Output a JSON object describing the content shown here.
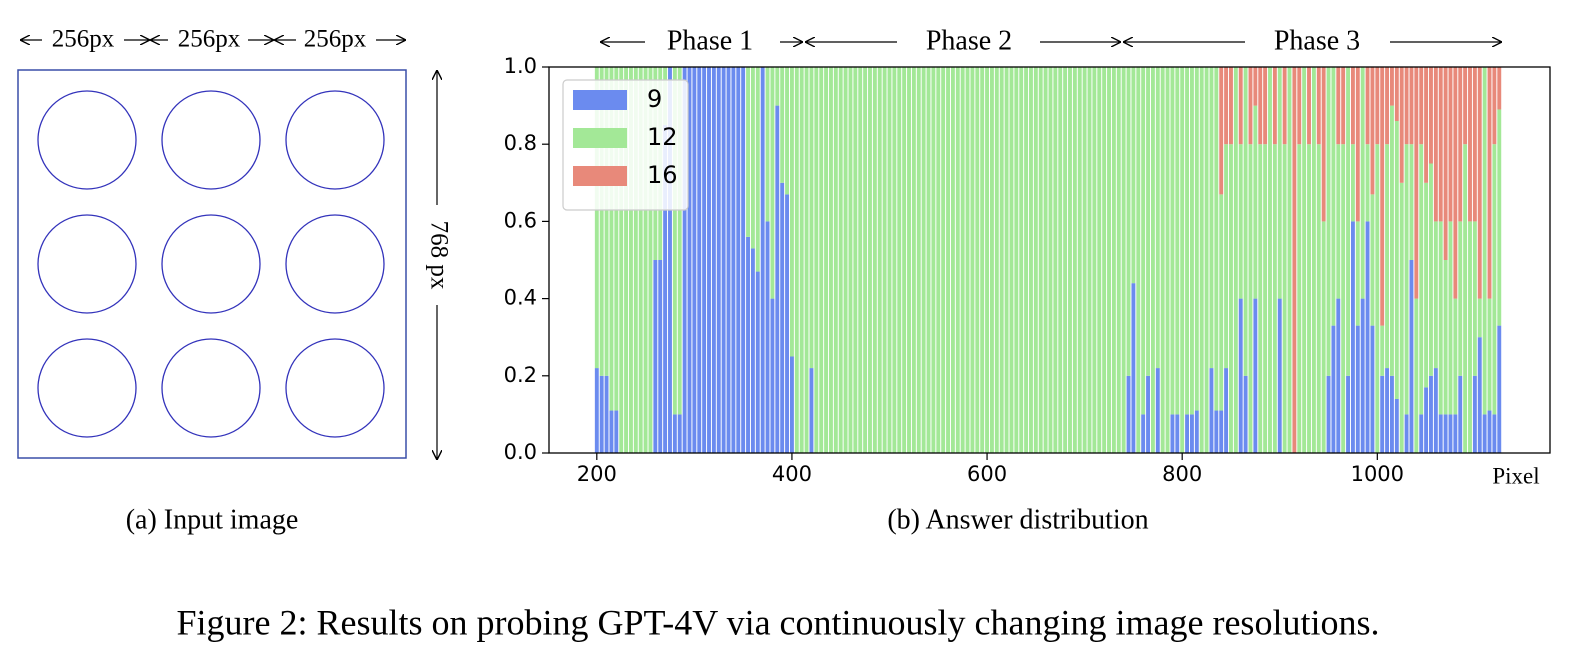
{
  "chart_data": {
    "type": "stacked_bar",
    "phases": [
      "Phase 1",
      "Phase 2",
      "Phase 3"
    ],
    "xlabel": "Pixel",
    "caption": "(b) Answer distribution",
    "xlim": [
      151,
      1177
    ],
    "xticks": [
      200,
      400,
      600,
      800,
      1000
    ],
    "ylim": [
      0,
      1
    ],
    "yticks": [
      {
        "value": 0,
        "label": "0.0"
      },
      0.2,
      0.4,
      0.6,
      0.8,
      {
        "value": 1,
        "label": "1.0"
      }
    ],
    "legend": "upper left",
    "x": [
      200,
      205,
      210,
      215,
      220,
      225,
      230,
      235,
      240,
      245,
      250,
      255,
      260,
      265,
      270,
      275,
      280,
      285,
      290,
      295,
      300,
      305,
      310,
      315,
      320,
      325,
      330,
      335,
      340,
      345,
      350,
      355,
      360,
      365,
      370,
      375,
      380,
      385,
      390,
      395,
      400,
      405,
      410,
      415,
      420,
      425,
      430,
      435,
      440,
      445,
      450,
      455,
      460,
      465,
      470,
      475,
      480,
      485,
      490,
      495,
      500,
      505,
      510,
      515,
      520,
      525,
      530,
      535,
      540,
      545,
      550,
      555,
      560,
      565,
      570,
      575,
      580,
      585,
      590,
      595,
      600,
      605,
      610,
      615,
      620,
      625,
      630,
      635,
      640,
      645,
      650,
      655,
      660,
      665,
      670,
      675,
      680,
      685,
      690,
      695,
      700,
      705,
      710,
      715,
      720,
      725,
      730,
      735,
      740,
      745,
      750,
      755,
      760,
      765,
      770,
      775,
      780,
      785,
      790,
      795,
      800,
      805,
      810,
      815,
      820,
      825,
      830,
      835,
      840,
      845,
      850,
      855,
      860,
      865,
      870,
      875,
      880,
      885,
      890,
      895,
      900,
      905,
      910,
      915,
      920,
      925,
      930,
      935,
      940,
      945,
      950,
      955,
      960,
      965,
      970,
      975,
      980,
      985,
      990,
      995,
      1000,
      1005,
      1010,
      1015,
      1020,
      1025,
      1030,
      1035,
      1040,
      1045,
      1050,
      1055,
      1060,
      1065,
      1070,
      1075,
      1080,
      1085,
      1090,
      1095,
      1100,
      1105,
      1110,
      1115,
      1120,
      1125
    ],
    "series": [
      {
        "name": "9",
        "color": "#6b8bef",
        "values": [
          0.22,
          0.2,
          0.2,
          0.11,
          0.11,
          0,
          0,
          0,
          0,
          0,
          0,
          0,
          0.5,
          0.5,
          0.85,
          1,
          0.1,
          0.1,
          1,
          1,
          1,
          1,
          1,
          1,
          1,
          1,
          1,
          1,
          1,
          1,
          1,
          0.56,
          0.53,
          0.47,
          1,
          0.6,
          0.4,
          0.9,
          0.7,
          0.67,
          0.25,
          0,
          0,
          0,
          0.22,
          0,
          0,
          0,
          0,
          0,
          0,
          0,
          0,
          0,
          0,
          0,
          0,
          0,
          0,
          0,
          0,
          0,
          0,
          0,
          0,
          0,
          0,
          0,
          0,
          0,
          0,
          0,
          0,
          0,
          0,
          0,
          0,
          0,
          0,
          0,
          0,
          0,
          0,
          0,
          0,
          0,
          0,
          0,
          0,
          0,
          0,
          0,
          0,
          0,
          0,
          0,
          0,
          0,
          0,
          0,
          0,
          0,
          0,
          0,
          0,
          0,
          0,
          0,
          0,
          0.2,
          0.44,
          0,
          0.1,
          0.2,
          0,
          0.22,
          0,
          0,
          0.1,
          0.1,
          0,
          0.1,
          0.1,
          0.11,
          0,
          0,
          0.22,
          0.11,
          0.11,
          0.22,
          0,
          0,
          0.4,
          0.2,
          0,
          0.4,
          0,
          0,
          0,
          0,
          0.4,
          0,
          0,
          0,
          0,
          0,
          0,
          0,
          0,
          0,
          0.2,
          0.33,
          0.4,
          0,
          0.2,
          0.6,
          0.33,
          0.4,
          0.6,
          0.33,
          0,
          0.2,
          0.22,
          0.2,
          0.14,
          0,
          0.1,
          0.5,
          0,
          0.1,
          0.17,
          0.2,
          0.22,
          0.1,
          0.1,
          0.1,
          0.1,
          0.2,
          0,
          0,
          0.2,
          0.3,
          0.1,
          0.11,
          0.1,
          0.33
        ]
      },
      {
        "name": "12",
        "color": "#a3e897",
        "values": [
          0.78,
          0.8,
          0.8,
          0.89,
          0.89,
          1,
          1,
          1,
          1,
          1,
          1,
          1,
          0.5,
          0.5,
          0.15,
          0,
          0.9,
          0.9,
          0,
          0,
          0,
          0,
          0,
          0,
          0,
          0,
          0,
          0,
          0,
          0,
          0,
          0.44,
          0.47,
          0.53,
          0,
          0.4,
          0.6,
          0.1,
          0.3,
          0.33,
          0.75,
          1,
          1,
          1,
          0.78,
          1,
          1,
          1,
          1,
          1,
          1,
          1,
          1,
          1,
          1,
          1,
          1,
          1,
          1,
          1,
          1,
          1,
          1,
          1,
          1,
          1,
          1,
          1,
          1,
          1,
          1,
          1,
          1,
          1,
          1,
          1,
          1,
          1,
          1,
          1,
          1,
          1,
          1,
          1,
          1,
          1,
          1,
          1,
          1,
          1,
          1,
          1,
          1,
          1,
          1,
          1,
          1,
          1,
          1,
          1,
          1,
          1,
          1,
          1,
          1,
          1,
          1,
          1,
          1,
          0.8,
          0.56,
          1,
          0.9,
          0.8,
          1,
          0.78,
          1,
          1,
          0.9,
          0.9,
          1,
          0.9,
          0.9,
          0.89,
          1,
          1,
          0.78,
          0.89,
          0.56,
          0.58,
          0.8,
          1,
          0.4,
          0.8,
          0.8,
          0.5,
          0.8,
          0.8,
          1,
          0.8,
          0.6,
          0.8,
          1,
          0,
          0.8,
          1,
          0.8,
          1,
          0.8,
          0.6,
          0.8,
          0.67,
          0.4,
          0.8,
          0.8,
          0.2,
          0.27,
          0.6,
          0.2,
          0.34,
          0.8,
          0.13,
          0.58,
          0.7,
          0.72,
          0.7,
          0.7,
          0.3,
          0.4,
          0.7,
          0.53,
          0.55,
          0.38,
          0.5,
          0.4,
          0.5,
          0.3,
          0.4,
          0.8,
          0.6,
          0.4,
          0.1,
          0.9,
          0.29,
          0.7,
          0.56
        ]
      },
      {
        "name": "16",
        "color": "#e8897a",
        "values": [
          0,
          0,
          0,
          0,
          0,
          0,
          0,
          0,
          0,
          0,
          0,
          0,
          0,
          0,
          0,
          0,
          0,
          0,
          0,
          0,
          0,
          0,
          0,
          0,
          0,
          0,
          0,
          0,
          0,
          0,
          0,
          0,
          0,
          0,
          0,
          0,
          0,
          0,
          0,
          0,
          0,
          0,
          0,
          0,
          0,
          0,
          0,
          0,
          0,
          0,
          0,
          0,
          0,
          0,
          0,
          0,
          0,
          0,
          0,
          0,
          0,
          0,
          0,
          0,
          0,
          0,
          0,
          0,
          0,
          0,
          0,
          0,
          0,
          0,
          0,
          0,
          0,
          0,
          0,
          0,
          0,
          0,
          0,
          0,
          0,
          0,
          0,
          0,
          0,
          0,
          0,
          0,
          0,
          0,
          0,
          0,
          0,
          0,
          0,
          0,
          0,
          0,
          0,
          0,
          0,
          0,
          0,
          0,
          0,
          0,
          0,
          0,
          0,
          0,
          0,
          0,
          0,
          0,
          0,
          0,
          0,
          0,
          0,
          0,
          0,
          0,
          0,
          0,
          0.33,
          0.2,
          0.2,
          0,
          0.2,
          0,
          0.2,
          0.1,
          0.2,
          0.2,
          0,
          0.2,
          0,
          0.2,
          0,
          1,
          0.2,
          0,
          0.2,
          0,
          0.2,
          0.4,
          0,
          0,
          0.2,
          0.2,
          0,
          0.2,
          0.4,
          0,
          0.2,
          0.33,
          0.2,
          0.67,
          0.2,
          0.1,
          0.14,
          0.3,
          0.2,
          0.2,
          0.6,
          0.2,
          0.3,
          0.25,
          0.4,
          0.4,
          0.5,
          0.4,
          0.6,
          0.4,
          0.2,
          0.4,
          0.4,
          0.6,
          0,
          0.6,
          0.2,
          0.11
        ]
      }
    ]
  },
  "input_image": {
    "width_labels": [
      "256px",
      "256px",
      "256px"
    ],
    "height_label": "768 px",
    "caption": "(a) Input image"
  },
  "figure_caption": "Figure 2: Results on probing GPT-4V via continuously changing image resolutions."
}
